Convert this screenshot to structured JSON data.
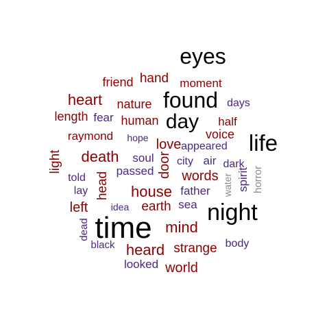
{
  "chart_data": {
    "type": "wordcloud",
    "title": "",
    "colors": {
      "black": "#000000",
      "darkred": "#8b0000",
      "purple": "#4b2683",
      "gray": "#8a8a8a"
    },
    "words": [
      {
        "text": "time",
        "color": "black"
      },
      {
        "text": "night",
        "color": "black"
      },
      {
        "text": "eyes",
        "color": "black"
      },
      {
        "text": "found",
        "color": "black"
      },
      {
        "text": "life",
        "color": "black"
      },
      {
        "text": "day",
        "color": "black"
      },
      {
        "text": "heart",
        "color": "darkred"
      },
      {
        "text": "death",
        "color": "darkred"
      },
      {
        "text": "house",
        "color": "darkred"
      },
      {
        "text": "heard",
        "color": "darkred"
      },
      {
        "text": "mind",
        "color": "darkred"
      },
      {
        "text": "hand",
        "color": "darkred"
      },
      {
        "text": "friend",
        "color": "darkred"
      },
      {
        "text": "moment",
        "color": "darkred"
      },
      {
        "text": "nature",
        "color": "darkred"
      },
      {
        "text": "length",
        "color": "darkred"
      },
      {
        "text": "human",
        "color": "darkred"
      },
      {
        "text": "raymond",
        "color": "darkred"
      },
      {
        "text": "voice",
        "color": "darkred"
      },
      {
        "text": "half",
        "color": "darkred"
      },
      {
        "text": "love",
        "color": "darkred"
      },
      {
        "text": "light",
        "color": "darkred"
      },
      {
        "text": "door",
        "color": "darkred"
      },
      {
        "text": "words",
        "color": "darkred"
      },
      {
        "text": "head",
        "color": "darkred"
      },
      {
        "text": "left",
        "color": "darkred"
      },
      {
        "text": "earth",
        "color": "darkred"
      },
      {
        "text": "strange",
        "color": "darkred"
      },
      {
        "text": "world",
        "color": "darkred"
      },
      {
        "text": "fear",
        "color": "purple"
      },
      {
        "text": "days",
        "color": "purple"
      },
      {
        "text": "hope",
        "color": "purple"
      },
      {
        "text": "appeared",
        "color": "purple"
      },
      {
        "text": "soul",
        "color": "purple"
      },
      {
        "text": "city",
        "color": "purple"
      },
      {
        "text": "air",
        "color": "purple"
      },
      {
        "text": "dark",
        "color": "purple"
      },
      {
        "text": "passed",
        "color": "purple"
      },
      {
        "text": "told",
        "color": "purple"
      },
      {
        "text": "lay",
        "color": "purple"
      },
      {
        "text": "father",
        "color": "purple"
      },
      {
        "text": "spirit",
        "color": "purple"
      },
      {
        "text": "sea",
        "color": "purple"
      },
      {
        "text": "idea",
        "color": "purple"
      },
      {
        "text": "dead",
        "color": "purple"
      },
      {
        "text": "black",
        "color": "purple"
      },
      {
        "text": "body",
        "color": "purple"
      },
      {
        "text": "looked",
        "color": "purple"
      },
      {
        "text": "water",
        "color": "gray"
      },
      {
        "text": "horror",
        "color": "gray"
      }
    ]
  }
}
